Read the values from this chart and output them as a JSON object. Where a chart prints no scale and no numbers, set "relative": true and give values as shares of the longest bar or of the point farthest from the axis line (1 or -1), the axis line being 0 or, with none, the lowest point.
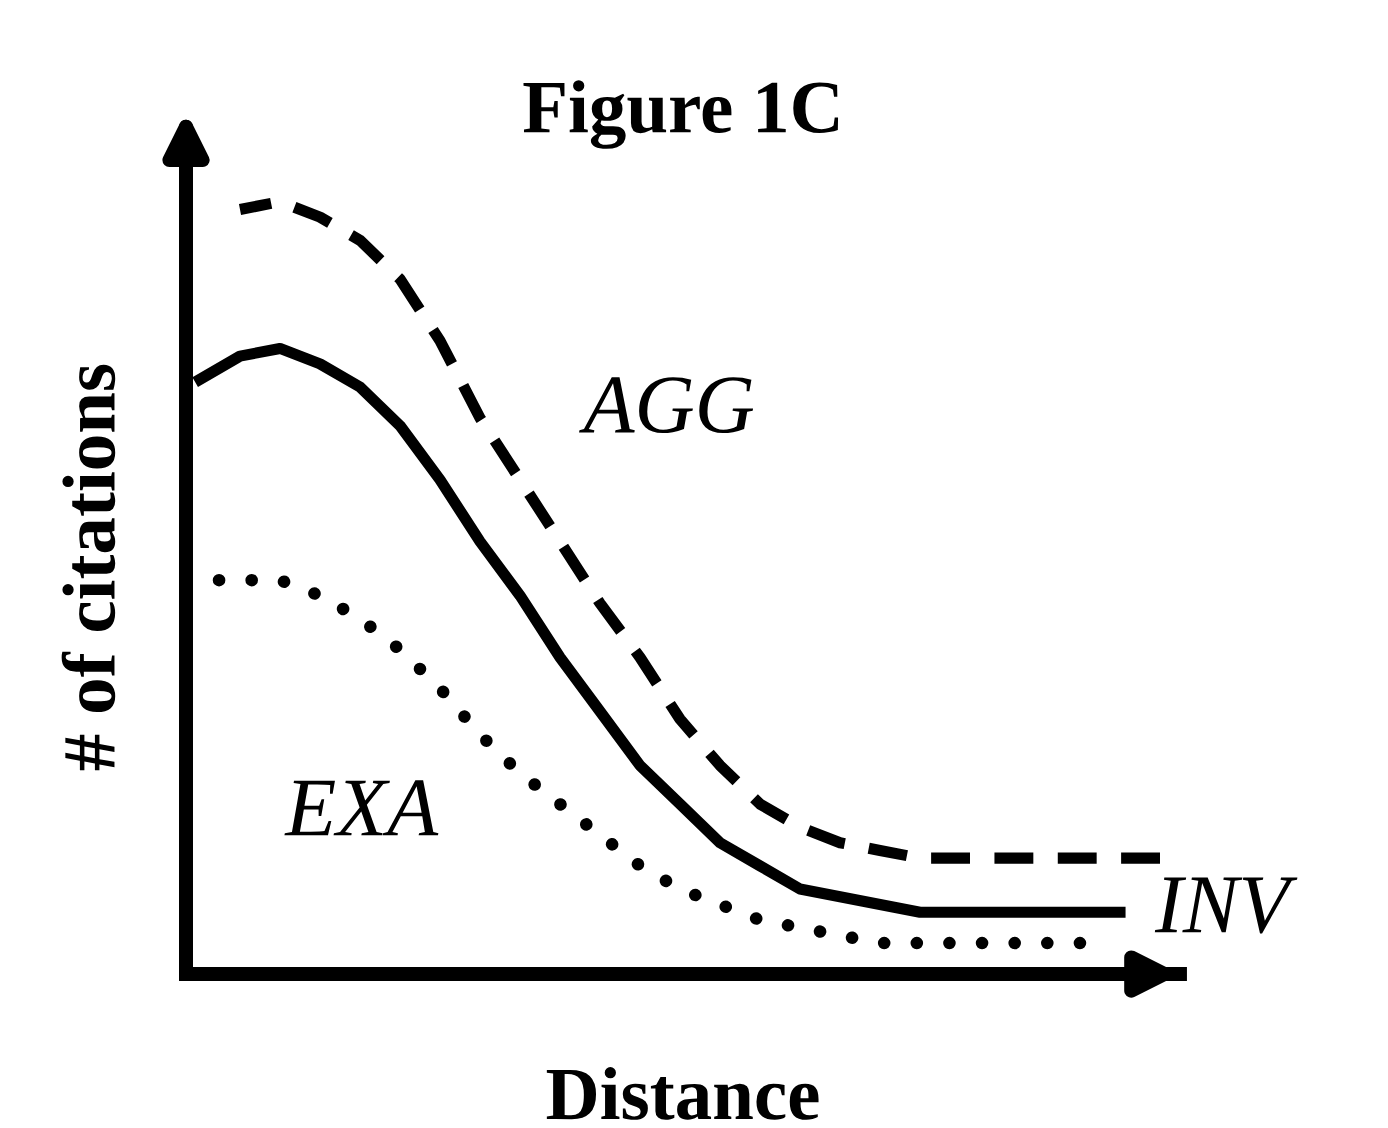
{
  "chart_data": {
    "type": "line",
    "title": "Figure 1C",
    "xlabel": "Distance",
    "ylabel": "# of citations",
    "relative": true,
    "legend": false,
    "categories": [
      null,
      null,
      null,
      null,
      null,
      null,
      null,
      null,
      null,
      null,
      null,
      null,
      null,
      null,
      null,
      null,
      null,
      null,
      null,
      null,
      null,
      null,
      null,
      null,
      null
    ],
    "series": [
      {
        "name": "AGG",
        "color": "#000000",
        "line_style": "dashed",
        "values": [
          null,
          0.99,
          1.0,
          0.98,
          0.95,
          0.9,
          0.82,
          0.72,
          0.64,
          0.56,
          0.48,
          0.41,
          0.33,
          0.27,
          0.22,
          0.19,
          0.17,
          0.16,
          0.15,
          0.15,
          0.15,
          0.15,
          0.15,
          0.15,
          0.15
        ]
      },
      {
        "name": "INV",
        "color": "#000000",
        "line_style": "solid",
        "values": [
          0.77,
          0.8,
          0.81,
          0.79,
          0.76,
          0.71,
          0.64,
          0.56,
          0.49,
          0.41,
          0.34,
          0.27,
          0.22,
          0.17,
          0.14,
          0.11,
          0.1,
          0.09,
          0.08,
          0.08,
          0.08,
          0.08,
          0.08,
          0.08,
          null
        ]
      },
      {
        "name": "EXA",
        "color": "#000000",
        "line_style": "dotted",
        "values": [
          0.51,
          0.51,
          0.51,
          0.49,
          0.46,
          0.42,
          0.37,
          0.31,
          0.26,
          0.22,
          0.18,
          0.14,
          0.11,
          0.09,
          0.07,
          0.06,
          0.05,
          0.04,
          0.04,
          0.04,
          0.04,
          0.04,
          0.04,
          null,
          null
        ]
      }
    ]
  }
}
